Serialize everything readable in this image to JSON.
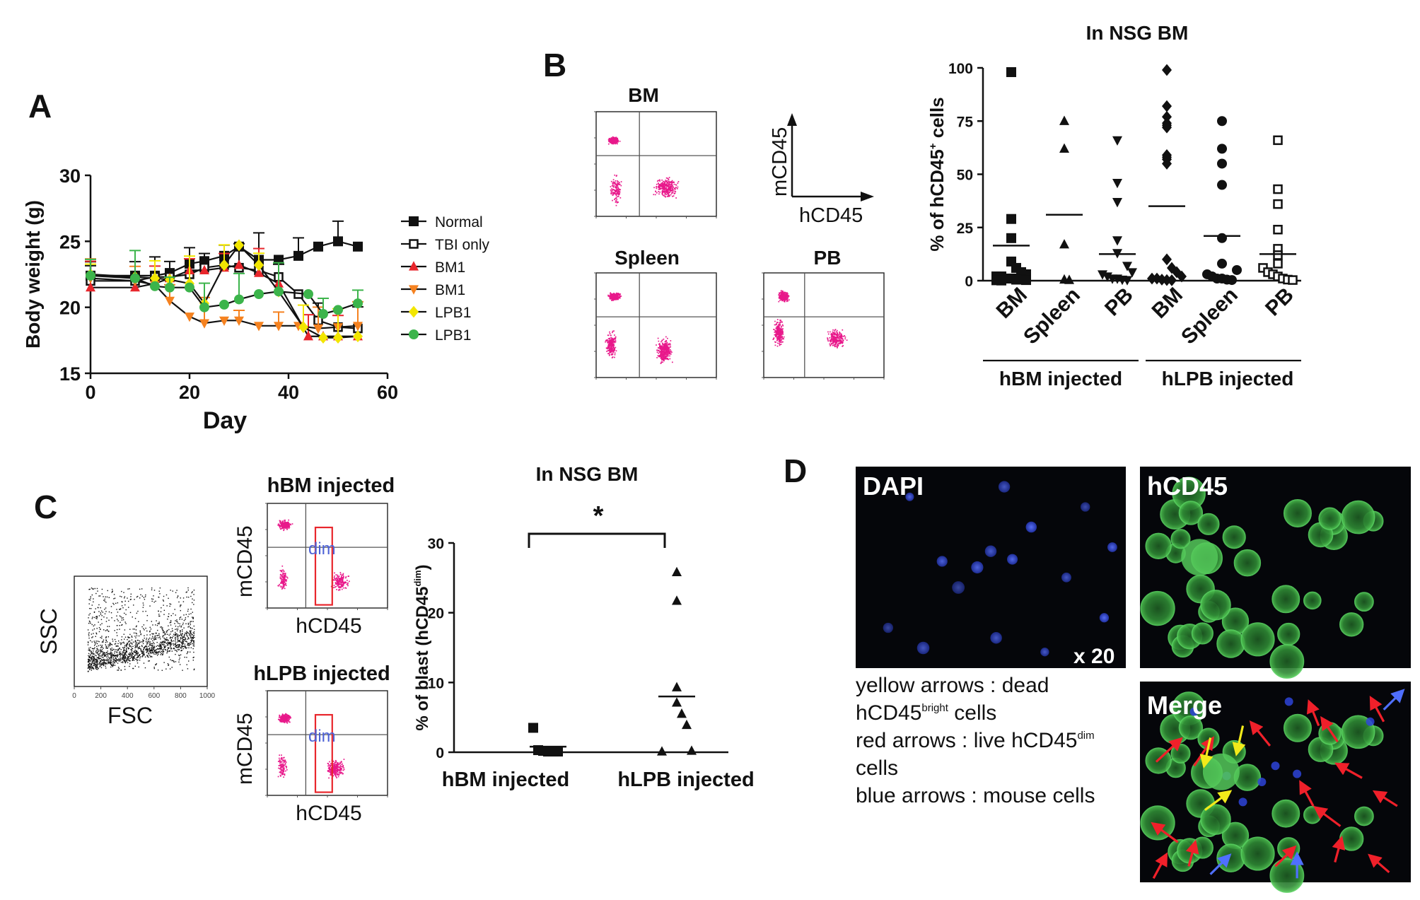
{
  "panels": {
    "a": {
      "letter": "A"
    },
    "b": {
      "letter": "B",
      "flow_titles": [
        "BM",
        "Spleen",
        "PB"
      ],
      "axis_key": {
        "y": "mCD45",
        "x": "hCD45"
      }
    },
    "c": {
      "letter": "C",
      "scatter": {
        "x": "FSC",
        "y": "SSC",
        "ticks": [
          "0",
          "200",
          "400",
          "600",
          "800",
          "1000"
        ]
      },
      "plots": [
        {
          "title": "hBM injected",
          "y": "mCD45",
          "x": "hCD45",
          "gate": "dim"
        },
        {
          "title": "hLPB injected",
          "y": "mCD45",
          "x": "hCD45",
          "gate": "dim"
        }
      ]
    },
    "d": {
      "letter": "D",
      "labels": {
        "dapi": "DAPI",
        "hcd45": "hCD45",
        "merge": "Merge",
        "mag": "x 20"
      },
      "legend": [
        {
          "pre": "yellow arrows : dead",
          "sup": "",
          "post": ""
        },
        {
          "pre": "hCD45",
          "sup": "bright",
          "post": " cells"
        },
        {
          "pre": "red arrows : live hCD45",
          "sup": "dim",
          "post": ""
        },
        {
          "pre": "cells",
          "sup": "",
          "post": ""
        },
        {
          "pre": "blue arrows : mouse cells",
          "sup": "",
          "post": ""
        }
      ]
    }
  },
  "chart_data": [
    {
      "type": "line",
      "panel": "A",
      "xlabel": "Day",
      "ylabel": "Body weight (g)",
      "xlim": [
        0,
        60
      ],
      "ylim": [
        15,
        30
      ],
      "xticks": [
        "0",
        "20",
        "40",
        "60"
      ],
      "yticks": [
        "15",
        "20",
        "25",
        "30"
      ],
      "legend": "right",
      "series": [
        {
          "name": "Normal",
          "color": "#111111",
          "marker": "square-filled",
          "x": [
            0,
            9,
            13,
            16,
            20,
            23,
            27,
            30,
            34,
            38,
            42,
            46,
            50,
            54
          ],
          "y": [
            22.4,
            22.4,
            22.4,
            22.6,
            23.3,
            23.5,
            23.9,
            24.6,
            23.6,
            23.6,
            23.9,
            24.6,
            25.0,
            24.6
          ]
        },
        {
          "name": "TBI only",
          "color": "#111111",
          "marker": "square-open",
          "x": [
            0,
            9,
            13,
            16,
            20,
            23,
            27,
            30,
            34,
            38,
            42,
            46,
            50,
            54
          ],
          "y": [
            22.0,
            22.0,
            22.3,
            22.3,
            22.5,
            23.0,
            23.2,
            23.0,
            22.8,
            22.3,
            21.0,
            19.0,
            18.5,
            18.4
          ]
        },
        {
          "name": "BM1",
          "color": "#e8262c",
          "marker": "triangle-up",
          "x": [
            0,
            9,
            13,
            16,
            20,
            23,
            27,
            30,
            34,
            38,
            44,
            47,
            50,
            54
          ],
          "y": [
            21.5,
            21.5,
            21.8,
            22.2,
            22.8,
            22.8,
            23.0,
            23.2,
            22.6,
            21.8,
            17.8,
            17.8,
            17.8,
            17.8
          ]
        },
        {
          "name": "BM1",
          "color": "#f58220",
          "marker": "triangle-down",
          "x": [
            0,
            9,
            13,
            16,
            20,
            23,
            27,
            30,
            34,
            38,
            42,
            46,
            50,
            54
          ],
          "y": [
            22.2,
            22.0,
            21.7,
            20.5,
            19.3,
            18.8,
            19.0,
            19.0,
            18.6,
            18.6,
            18.6,
            18.4,
            18.5,
            18.6
          ]
        },
        {
          "name": "LPB1",
          "color": "#f2e600",
          "marker": "diamond",
          "x": [
            0,
            9,
            13,
            16,
            20,
            23,
            27,
            30,
            34,
            38,
            43,
            47,
            50,
            54
          ],
          "y": [
            22.5,
            22.3,
            22.2,
            22.1,
            21.8,
            20.3,
            23.2,
            24.7,
            23.2,
            21.2,
            18.5,
            17.7,
            17.7,
            17.8
          ]
        },
        {
          "name": "LPB1",
          "color": "#3cb44b",
          "marker": "circle",
          "x": [
            0,
            9,
            13,
            16,
            20,
            23,
            27,
            30,
            34,
            38,
            44,
            47,
            50,
            54
          ],
          "y": [
            22.4,
            22.2,
            21.6,
            21.5,
            21.5,
            20.0,
            20.2,
            20.6,
            21.0,
            21.2,
            21.0,
            19.5,
            19.8,
            20.3
          ]
        }
      ]
    },
    {
      "type": "scatter",
      "panel": "B",
      "title": "In NSG BM",
      "ylabel": "% of hCD45+ cells",
      "ylim": [
        0,
        100
      ],
      "yticks": [
        "0",
        "25",
        "50",
        "75",
        "100"
      ],
      "categories": [
        "BM",
        "Spleen",
        "PB",
        "BM",
        "Spleen",
        "PB"
      ],
      "groups": [
        "hBM injected",
        "hLPB injected"
      ],
      "series": [
        {
          "category": "BM",
          "group": "hBM injected",
          "marker": "square-filled",
          "values": [
            98,
            29,
            20,
            9,
            6,
            4,
            3,
            2,
            2,
            1,
            1,
            0.5,
            0.5,
            0.3,
            0.2,
            0.1
          ],
          "mean": 16.5
        },
        {
          "category": "Spleen",
          "group": "hBM injected",
          "marker": "triangle-up",
          "values": [
            75,
            62,
            17,
            0.5,
            0.3
          ],
          "mean": 31
        },
        {
          "category": "PB",
          "group": "hBM injected",
          "marker": "triangle-down",
          "values": [
            66,
            46,
            37,
            19,
            13,
            7,
            4,
            3,
            2,
            1,
            1,
            0.5,
            0.3
          ],
          "mean": 12.5
        },
        {
          "category": "BM",
          "group": "hLPB injected",
          "marker": "diamond",
          "values": [
            99,
            82,
            77,
            74,
            73,
            72,
            59,
            57,
            55,
            58,
            10,
            6,
            4,
            2,
            1,
            1,
            0.5,
            0.3,
            0.2
          ],
          "mean": 35
        },
        {
          "category": "Spleen",
          "group": "hLPB injected",
          "marker": "circle",
          "values": [
            75,
            62,
            55,
            45,
            20,
            8,
            5,
            3,
            2,
            1,
            1,
            0.5,
            0.3
          ],
          "mean": 21
        },
        {
          "category": "PB",
          "group": "hLPB injected",
          "marker": "square-open",
          "values": [
            66,
            43,
            36,
            24,
            15,
            12,
            8,
            6,
            4,
            3,
            2,
            1,
            0.5,
            0.3
          ],
          "mean": 12.5
        }
      ]
    },
    {
      "type": "scatter",
      "panel": "C",
      "title": "In NSG BM",
      "ylabel": "% of blast (hCD45dim)",
      "ylim": [
        0,
        30
      ],
      "yticks": [
        "0",
        "10",
        "20",
        "30"
      ],
      "categories": [
        "hBM injected",
        "hLPB injected"
      ],
      "significance": "*",
      "series": [
        {
          "category": "hBM injected",
          "marker": "square-filled",
          "values": [
            3.5,
            0.3,
            0.2,
            0.1,
            0.1,
            0.1
          ],
          "mean": 0.8
        },
        {
          "category": "hLPB injected",
          "marker": "triangle-up",
          "values": [
            25.8,
            21.7,
            9.3,
            7.1,
            5.5,
            3.9,
            0.2,
            0.1
          ],
          "mean": 8
        }
      ]
    }
  ]
}
